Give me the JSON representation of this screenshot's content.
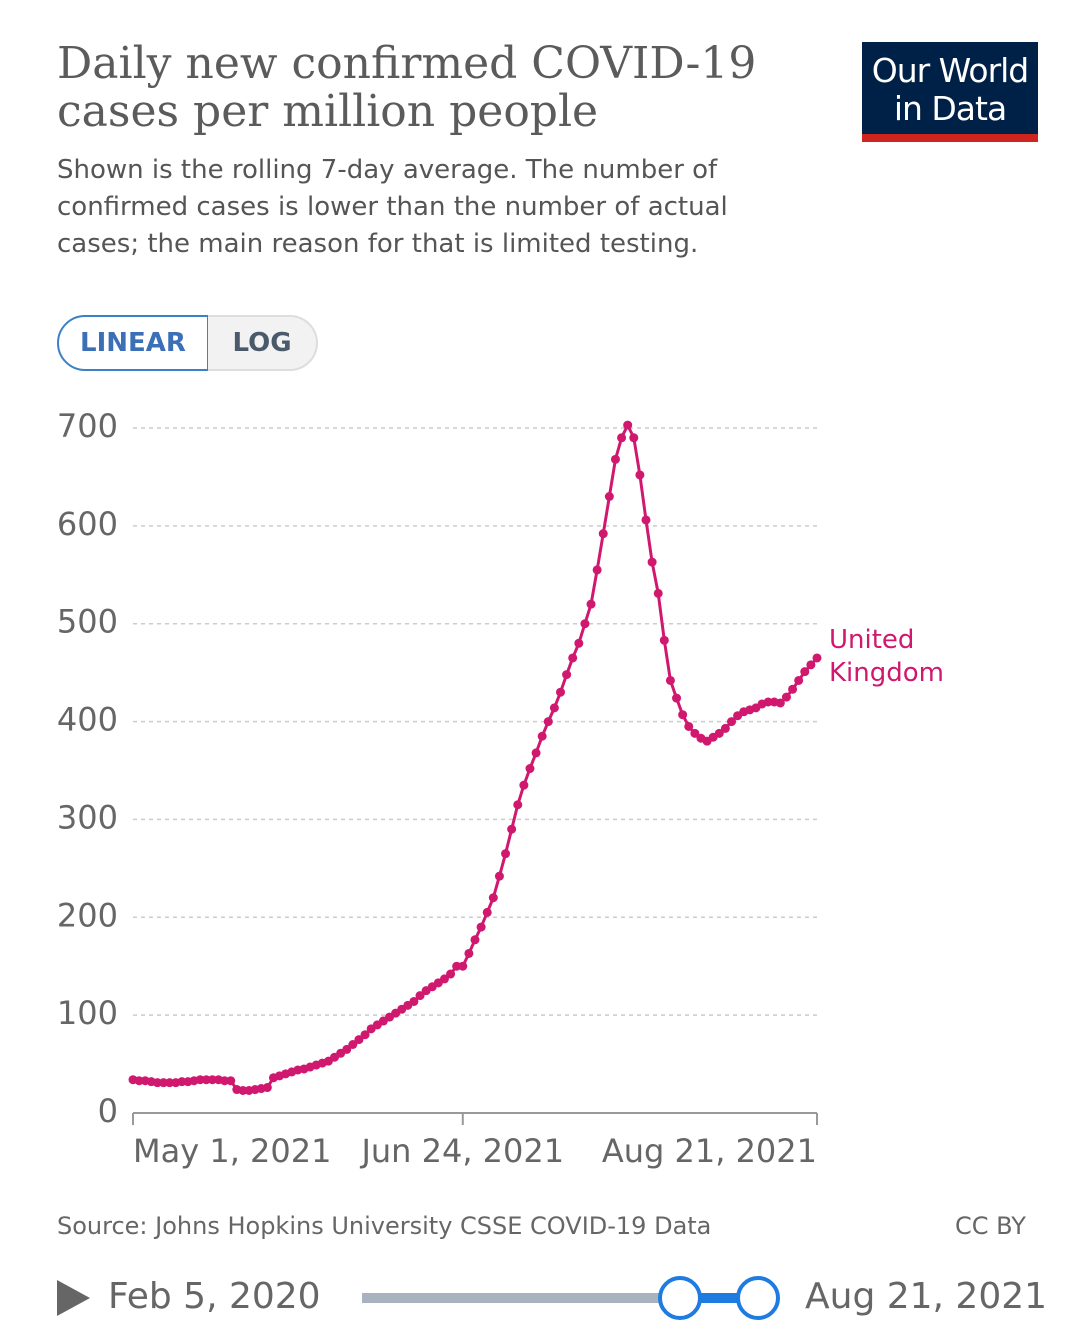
{
  "header": {
    "title": "Daily new confirmed COVID-19 cases per million people",
    "subtitle": "Shown is the rolling 7-day average. The number of confirmed cases is lower than the number of actual cases; the main reason for that is limited testing.",
    "logo": [
      "Our World",
      "in Data"
    ]
  },
  "controls": {
    "scale_buttons": [
      "LINEAR",
      "LOG"
    ]
  },
  "chart_data": {
    "type": "line",
    "grid": true,
    "x": [
      "2021-05-01",
      "2021-05-02",
      "2021-05-03",
      "2021-05-04",
      "2021-05-05",
      "2021-05-06",
      "2021-05-07",
      "2021-05-08",
      "2021-05-09",
      "2021-05-10",
      "2021-05-11",
      "2021-05-12",
      "2021-05-13",
      "2021-05-14",
      "2021-05-15",
      "2021-05-16",
      "2021-05-17",
      "2021-05-18",
      "2021-05-19",
      "2021-05-20",
      "2021-05-21",
      "2021-05-22",
      "2021-05-23",
      "2021-05-24",
      "2021-05-25",
      "2021-05-26",
      "2021-05-27",
      "2021-05-28",
      "2021-05-29",
      "2021-05-30",
      "2021-05-31",
      "2021-06-01",
      "2021-06-02",
      "2021-06-03",
      "2021-06-04",
      "2021-06-05",
      "2021-06-06",
      "2021-06-07",
      "2021-06-08",
      "2021-06-09",
      "2021-06-10",
      "2021-06-11",
      "2021-06-12",
      "2021-06-13",
      "2021-06-14",
      "2021-06-15",
      "2021-06-16",
      "2021-06-17",
      "2021-06-18",
      "2021-06-19",
      "2021-06-20",
      "2021-06-21",
      "2021-06-22",
      "2021-06-23",
      "2021-06-24",
      "2021-06-25",
      "2021-06-26",
      "2021-06-27",
      "2021-06-28",
      "2021-06-29",
      "2021-06-30",
      "2021-07-01",
      "2021-07-02",
      "2021-07-03",
      "2021-07-04",
      "2021-07-05",
      "2021-07-06",
      "2021-07-07",
      "2021-07-08",
      "2021-07-09",
      "2021-07-10",
      "2021-07-11",
      "2021-07-12",
      "2021-07-13",
      "2021-07-14",
      "2021-07-15",
      "2021-07-16",
      "2021-07-17",
      "2021-07-18",
      "2021-07-19",
      "2021-07-20",
      "2021-07-21",
      "2021-07-22",
      "2021-07-23",
      "2021-07-24",
      "2021-07-25",
      "2021-07-26",
      "2021-07-27",
      "2021-07-28",
      "2021-07-29",
      "2021-07-30",
      "2021-07-31",
      "2021-08-01",
      "2021-08-02",
      "2021-08-03",
      "2021-08-04",
      "2021-08-05",
      "2021-08-06",
      "2021-08-07",
      "2021-08-08",
      "2021-08-09",
      "2021-08-10",
      "2021-08-11",
      "2021-08-12",
      "2021-08-13",
      "2021-08-14",
      "2021-08-15",
      "2021-08-16",
      "2021-08-17",
      "2021-08-18",
      "2021-08-19",
      "2021-08-20",
      "2021-08-21"
    ],
    "series": [
      {
        "name": "United Kingdom",
        "color": "#d0186f",
        "values": [
          34,
          33,
          33,
          32,
          31,
          31,
          31,
          31,
          32,
          32,
          33,
          34,
          34,
          34,
          34,
          33,
          33,
          24,
          23,
          23,
          24,
          25,
          26,
          36,
          38,
          40,
          42,
          44,
          45,
          47,
          49,
          51,
          53,
          57,
          61,
          65,
          70,
          75,
          80,
          86,
          90,
          94,
          98,
          102,
          106,
          110,
          114,
          120,
          125,
          129,
          133,
          137,
          142,
          150,
          150,
          163,
          177,
          190,
          205,
          220,
          242,
          265,
          290,
          315,
          335,
          352,
          368,
          385,
          400,
          414,
          430,
          448,
          465,
          480,
          500,
          520,
          555,
          592,
          630,
          668,
          690,
          703,
          690,
          652,
          606,
          563,
          531,
          483,
          442,
          424,
          407,
          395,
          388,
          383,
          380,
          384,
          388,
          393,
          400,
          406,
          410,
          412,
          414,
          418,
          420,
          420,
          419,
          425,
          433,
          442,
          451,
          458,
          465
        ]
      }
    ],
    "xlim": [
      "2021-05-01",
      "2021-08-21"
    ],
    "xticks": [
      {
        "value": "2021-05-01",
        "label": "May 1, 2021"
      },
      {
        "value": "2021-06-24",
        "label": "Jun 24, 2021"
      },
      {
        "value": "2021-08-21",
        "label": "Aug 21, 2021"
      }
    ],
    "ylim": [
      0,
      700
    ],
    "yticks": [
      0,
      100,
      200,
      300,
      400,
      500,
      600,
      700
    ]
  },
  "footer": {
    "source": "Source: Johns Hopkins University CSSE COVID-19 Data",
    "license": "CC BY"
  },
  "timeline": {
    "start": "Feb 5, 2020",
    "end": "Aug 21, 2021"
  }
}
